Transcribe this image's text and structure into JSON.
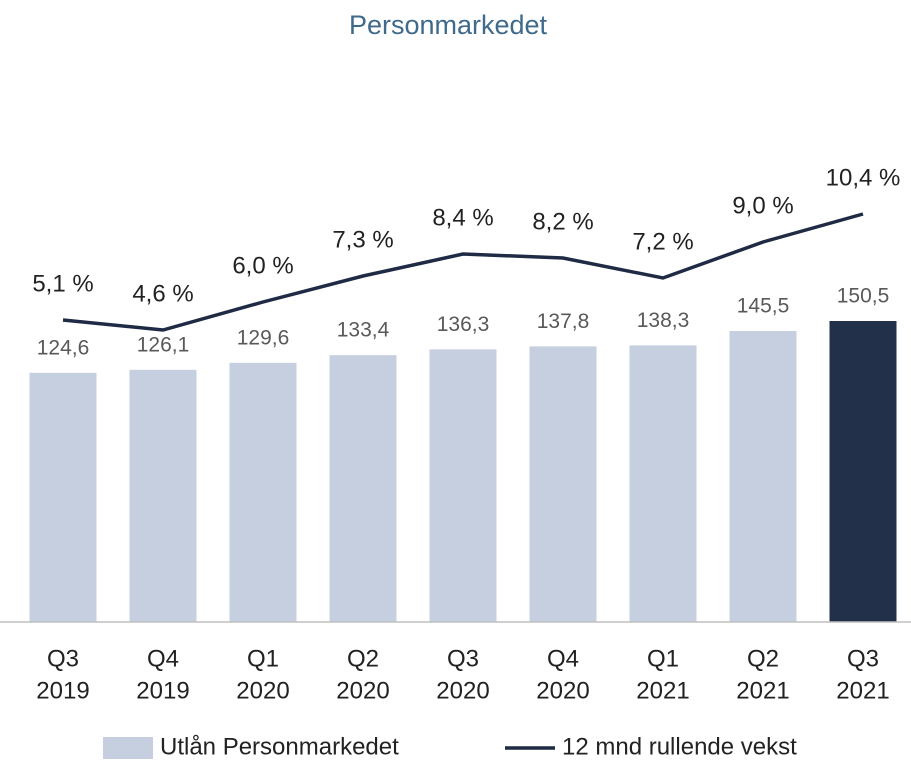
{
  "chart_data": {
    "type": "bar",
    "title": "Personmarkedet",
    "categories": [
      [
        "Q3",
        "2019"
      ],
      [
        "Q4",
        "2019"
      ],
      [
        "Q1",
        "2020"
      ],
      [
        "Q2",
        "2020"
      ],
      [
        "Q3",
        "2020"
      ],
      [
        "Q4",
        "2020"
      ],
      [
        "Q1",
        "2021"
      ],
      [
        "Q2",
        "2021"
      ],
      [
        "Q3",
        "2021"
      ]
    ],
    "ylim": [
      0,
      260
    ],
    "y2lim": [
      -10,
      16
    ],
    "series": [
      {
        "name": "Utlån Personmarkedet",
        "type": "bar",
        "color": "#c5cfdf",
        "colors": [
          "#c5cfdf",
          "#c5cfdf",
          "#c5cfdf",
          "#c5cfdf",
          "#c5cfdf",
          "#c5cfdf",
          "#c5cfdf",
          "#c5cfdf",
          "#22304a"
        ],
        "values": [
          124.6,
          126.1,
          129.6,
          133.4,
          136.3,
          137.8,
          138.3,
          145.5,
          150.5
        ],
        "value_labels": [
          "124,6",
          "126,1",
          "129,6",
          "133,4",
          "136,3",
          "137,8",
          "138,3",
          "145,5",
          "150,5"
        ]
      },
      {
        "name": "12 mnd rullende vekst",
        "type": "line",
        "axis": "y2",
        "color": "#1f2a44",
        "values": [
          5.1,
          4.6,
          6.0,
          7.3,
          8.4,
          8.2,
          7.2,
          9.0,
          10.4
        ],
        "value_labels": [
          "5,1 %",
          "4,6 %",
          "6,0 %",
          "7,3 %",
          "8,4 %",
          "8,2 %",
          "7,2 %",
          "9,0 %",
          "10,4 %"
        ]
      }
    ]
  }
}
